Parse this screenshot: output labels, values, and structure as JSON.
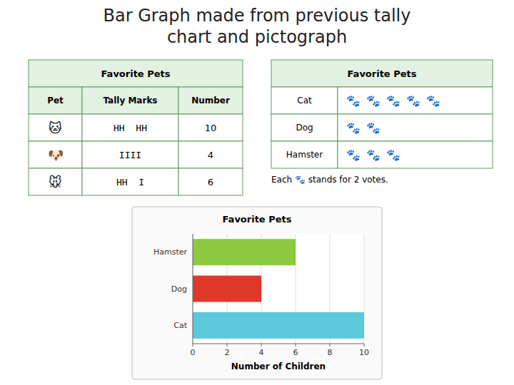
{
  "title": [
    "Bar Graph made from previous tally",
    "chart and pictograph"
  ],
  "chart_data": [
    {
      "type": "table",
      "title": "Favorite Pets",
      "headers": [
        "Pet",
        "Tally Marks",
        "Number"
      ],
      "rows": [
        [
          "🐱",
          "HH  HH",
          10
        ],
        [
          "🐶",
          "IIII",
          4
        ],
        [
          "🐭",
          "HH  I",
          6
        ]
      ]
    },
    {
      "type": "pictograph",
      "title": "Favorite Pets",
      "categories": [
        "Cat",
        "Dog",
        "Hamster"
      ],
      "values": [
        5,
        2,
        3
      ],
      "marker": "🐾",
      "annotation": "Each 🐾 stands for 2 votes."
    },
    {
      "type": "bar",
      "orientation": "horizontal",
      "title": "Favorite Pets",
      "categories": [
        "Cat",
        "Dog",
        "Hamster"
      ],
      "values": [
        10,
        4,
        6
      ],
      "colors": [
        "#5bc8dc",
        "#e03828",
        "#8cc840"
      ],
      "xlim": [
        0,
        10
      ],
      "xticks": [
        0,
        2,
        4,
        6,
        8,
        10
      ],
      "xlabel": "Number of Children",
      "grid": true
    }
  ]
}
